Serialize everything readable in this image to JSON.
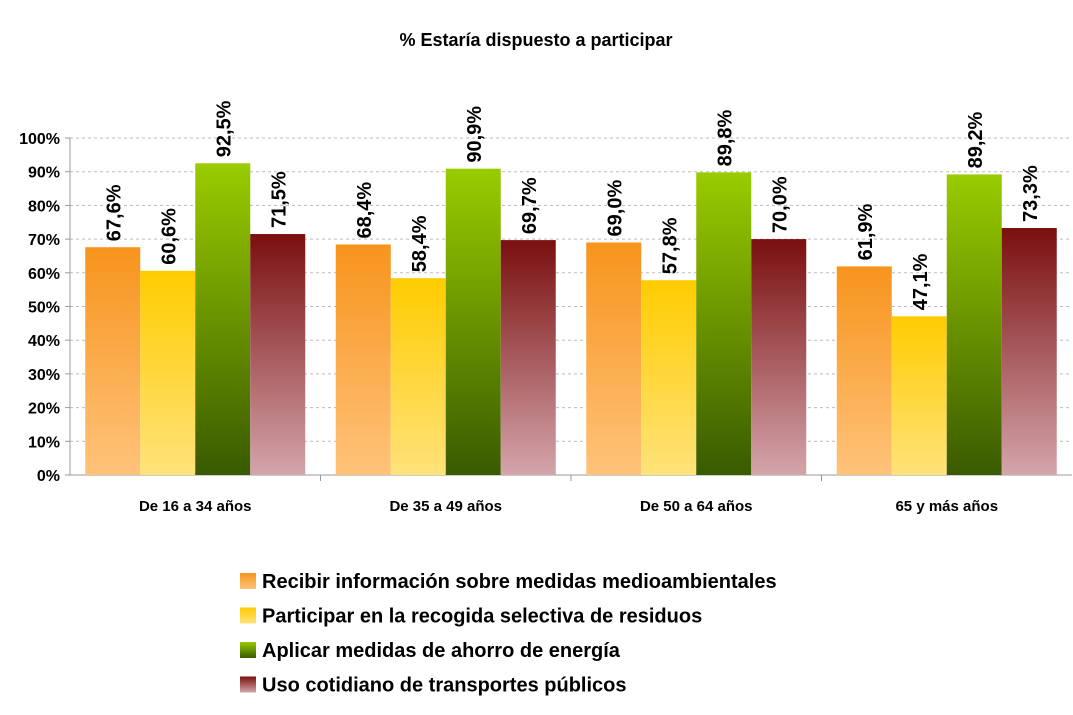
{
  "chart_data": {
    "type": "bar",
    "title": "% Estaría dispuesto a participar",
    "categories": [
      "De 16 a 34 años",
      "De 35 a 49 años",
      "De 50 a 64 años",
      "65 y más años"
    ],
    "series": [
      {
        "name": "Recibir información sobre medidas medioambientales",
        "gradient": [
          "#f7941d",
          "#ffc37a"
        ],
        "values": [
          67.6,
          68.4,
          69.0,
          61.9
        ],
        "value_labels": [
          "67,6%",
          "68,4%",
          "69,0%",
          "61,9%"
        ]
      },
      {
        "name": "Participar en la recogida selectiva de residuos",
        "gradient": [
          "#ffcc00",
          "#ffe27a"
        ],
        "values": [
          60.6,
          58.4,
          57.8,
          47.1
        ],
        "value_labels": [
          "60,6%",
          "58,4%",
          "57,8%",
          "47,1%"
        ]
      },
      {
        "name": "Aplicar medidas de ahorro de energía",
        "gradient": [
          "#99cc00",
          "#3a5a00"
        ],
        "values": [
          92.5,
          90.9,
          89.8,
          89.2
        ],
        "value_labels": [
          "92,5%",
          "90,9%",
          "89,8%",
          "89,2%"
        ]
      },
      {
        "name": "Uso cotidiano de transportes públicos",
        "gradient": [
          "#7a0f0f",
          "#d4a5ab"
        ],
        "values": [
          71.5,
          69.7,
          70.0,
          73.3
        ],
        "value_labels": [
          "71,5%",
          "69,7%",
          "70,0%",
          "73,3%"
        ]
      }
    ],
    "ylim": [
      0,
      100
    ],
    "yticks": [
      {
        "value": 0,
        "label": "0%"
      },
      {
        "value": 10,
        "label": "10%"
      },
      {
        "value": 20,
        "label": "20%"
      },
      {
        "value": 30,
        "label": "30%"
      },
      {
        "value": 40,
        "label": "40%"
      },
      {
        "value": 50,
        "label": "50%"
      },
      {
        "value": 60,
        "label": "60%"
      },
      {
        "value": 70,
        "label": "70%"
      },
      {
        "value": 80,
        "label": "80%"
      },
      {
        "value": 90,
        "label": "90%"
      },
      {
        "value": 100,
        "label": "100%"
      }
    ],
    "grid": true
  }
}
